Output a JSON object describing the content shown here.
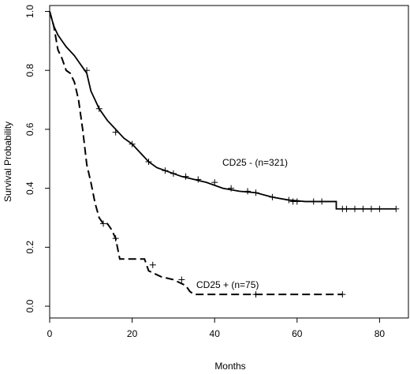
{
  "chart_data": {
    "type": "line",
    "title": "",
    "xlabel": "Months",
    "ylabel": "Survival Probability",
    "xlim": [
      0,
      87
    ],
    "ylim": [
      -0.04,
      1.02
    ],
    "x_ticks": [
      "0",
      "20",
      "40",
      "60",
      "80"
    ],
    "y_ticks": [
      "0.0",
      "0.2",
      "0.4",
      "0.6",
      "0.8",
      "1.0"
    ],
    "grid": false,
    "series": [
      {
        "name": "CD25 - (n=321)",
        "line_style": "solid",
        "color": "#000000",
        "points": [
          [
            0,
            1.0
          ],
          [
            1,
            0.95
          ],
          [
            2,
            0.92
          ],
          [
            3,
            0.9
          ],
          [
            4,
            0.88
          ],
          [
            5,
            0.865
          ],
          [
            6,
            0.85
          ],
          [
            7,
            0.83
          ],
          [
            8,
            0.81
          ],
          [
            9,
            0.79
          ],
          [
            10,
            0.73
          ],
          [
            11,
            0.7
          ],
          [
            12,
            0.67
          ],
          [
            14,
            0.63
          ],
          [
            16,
            0.6
          ],
          [
            18,
            0.57
          ],
          [
            20,
            0.55
          ],
          [
            22,
            0.52
          ],
          [
            24,
            0.49
          ],
          [
            26,
            0.47
          ],
          [
            28,
            0.46
          ],
          [
            30,
            0.45
          ],
          [
            32,
            0.44
          ],
          [
            35,
            0.43
          ],
          [
            38,
            0.42
          ],
          [
            42,
            0.4
          ],
          [
            46,
            0.39
          ],
          [
            50,
            0.385
          ],
          [
            54,
            0.37
          ],
          [
            58,
            0.36
          ],
          [
            62,
            0.355
          ],
          [
            66,
            0.355
          ],
          [
            69.5,
            0.355
          ],
          [
            69.5,
            0.33
          ],
          [
            84,
            0.33
          ]
        ],
        "censor_marks": [
          [
            9,
            0.8
          ],
          [
            12,
            0.67
          ],
          [
            16,
            0.59
          ],
          [
            20,
            0.55
          ],
          [
            24,
            0.49
          ],
          [
            28,
            0.46
          ],
          [
            30,
            0.45
          ],
          [
            33,
            0.44
          ],
          [
            36,
            0.43
          ],
          [
            40,
            0.42
          ],
          [
            44,
            0.4
          ],
          [
            48,
            0.39
          ],
          [
            50,
            0.385
          ],
          [
            54,
            0.37
          ],
          [
            58,
            0.36
          ],
          [
            59,
            0.355
          ],
          [
            60,
            0.355
          ],
          [
            64,
            0.355
          ],
          [
            66,
            0.355
          ],
          [
            71,
            0.33
          ],
          [
            72,
            0.33
          ],
          [
            74,
            0.33
          ],
          [
            76,
            0.33
          ],
          [
            78,
            0.33
          ],
          [
            80,
            0.33
          ],
          [
            84,
            0.33
          ]
        ]
      },
      {
        "name": "CD25 + (n=75)",
        "line_style": "dashed",
        "color": "#000000",
        "points": [
          [
            0,
            1.0
          ],
          [
            1,
            0.95
          ],
          [
            2,
            0.87
          ],
          [
            3,
            0.84
          ],
          [
            4,
            0.8
          ],
          [
            5,
            0.79
          ],
          [
            6,
            0.76
          ],
          [
            7,
            0.7
          ],
          [
            8,
            0.6
          ],
          [
            9,
            0.48
          ],
          [
            10,
            0.42
          ],
          [
            11,
            0.35
          ],
          [
            12,
            0.3
          ],
          [
            13,
            0.28
          ],
          [
            14,
            0.28
          ],
          [
            15,
            0.26
          ],
          [
            16,
            0.23
          ],
          [
            17,
            0.16
          ],
          [
            22,
            0.16
          ],
          [
            23,
            0.16
          ],
          [
            24,
            0.12
          ],
          [
            27,
            0.1
          ],
          [
            30,
            0.09
          ],
          [
            33,
            0.07
          ],
          [
            34,
            0.05
          ],
          [
            35,
            0.04
          ],
          [
            71,
            0.04
          ]
        ],
        "censor_marks": [
          [
            13,
            0.28
          ],
          [
            16,
            0.23
          ],
          [
            25,
            0.14
          ],
          [
            32,
            0.09
          ],
          [
            50,
            0.04
          ],
          [
            71,
            0.04
          ]
        ]
      }
    ],
    "annotations": [
      "CD25 - (n=321)",
      "CD25 + (n=75)"
    ]
  }
}
